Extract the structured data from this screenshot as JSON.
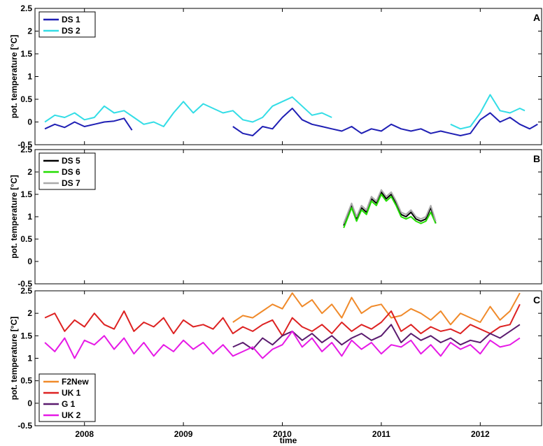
{
  "figure": {
    "xlabel": "time",
    "x_tick_labels": [
      "2008",
      "2009",
      "2010",
      "2011",
      "2012"
    ]
  },
  "chart_data": [
    {
      "type": "line",
      "panel_label": "A",
      "ylabel": "pot. temperature [°C]",
      "xlim": [
        2007.5,
        2012.62
      ],
      "ylim": [
        -0.5,
        2.5
      ],
      "yticks": [
        -0.5,
        0,
        0.5,
        1,
        1.5,
        2,
        2.5
      ],
      "y_tick_labels": [
        "-0.5",
        "0",
        "0.5",
        "1",
        "1.5",
        "2",
        "2.5"
      ],
      "xticks": [
        2008,
        2009,
        2010,
        2011,
        2012
      ],
      "grid": false,
      "legend_position": "top-left",
      "series": [
        {
          "name": "DS 1",
          "color": "#1f1fb4",
          "segments": [
            {
              "x": [
                2007.6,
                2007.7,
                2007.8,
                2007.9,
                2008.0,
                2008.1,
                2008.2,
                2008.3,
                2008.4,
                2008.48
              ],
              "y": [
                -0.15,
                -0.05,
                -0.12,
                0.0,
                -0.1,
                -0.05,
                0.0,
                0.02,
                0.08,
                -0.18
              ]
            },
            {
              "x": [
                2009.5,
                2009.6,
                2009.7,
                2009.8,
                2009.9,
                2010.0,
                2010.1,
                2010.2,
                2010.3,
                2010.4,
                2010.5,
                2010.6,
                2010.7,
                2010.8,
                2010.9,
                2011.0,
                2011.1,
                2011.2,
                2011.3,
                2011.4,
                2011.5,
                2011.6,
                2011.7,
                2011.8,
                2011.9,
                2012.0,
                2012.1,
                2012.2,
                2012.3,
                2012.4,
                2012.5,
                2012.58
              ],
              "y": [
                -0.1,
                -0.25,
                -0.3,
                -0.1,
                -0.15,
                0.1,
                0.3,
                0.05,
                -0.05,
                -0.1,
                -0.15,
                -0.2,
                -0.1,
                -0.25,
                -0.15,
                -0.2,
                -0.05,
                -0.15,
                -0.2,
                -0.15,
                -0.25,
                -0.2,
                -0.25,
                -0.3,
                -0.25,
                0.05,
                0.2,
                0.0,
                0.1,
                -0.05,
                -0.15,
                -0.05
              ]
            }
          ]
        },
        {
          "name": "DS 2",
          "color": "#33dde6",
          "segments": [
            {
              "x": [
                2007.6,
                2007.7,
                2007.8,
                2007.9,
                2008.0,
                2008.1,
                2008.2,
                2008.3,
                2008.4,
                2008.5,
                2008.6,
                2008.7,
                2008.8,
                2008.9,
                2009.0,
                2009.1,
                2009.2,
                2009.3,
                2009.4,
                2009.5,
                2009.6,
                2009.7,
                2009.8,
                2009.9,
                2010.0,
                2010.1,
                2010.2,
                2010.3,
                2010.4,
                2010.5
              ],
              "y": [
                0.0,
                0.15,
                0.1,
                0.2,
                0.05,
                0.1,
                0.35,
                0.2,
                0.25,
                0.1,
                -0.05,
                0.0,
                -0.1,
                0.2,
                0.45,
                0.2,
                0.4,
                0.3,
                0.2,
                0.25,
                0.05,
                0.0,
                0.1,
                0.35,
                0.45,
                0.55,
                0.35,
                0.15,
                0.2,
                0.1
              ]
            },
            {
              "x": [
                2011.7,
                2011.8,
                2011.9,
                2012.0,
                2012.1,
                2012.2,
                2012.3,
                2012.4,
                2012.45
              ],
              "y": [
                -0.05,
                -0.15,
                -0.1,
                0.2,
                0.6,
                0.25,
                0.2,
                0.3,
                0.25
              ]
            }
          ]
        }
      ]
    },
    {
      "type": "line",
      "panel_label": "B",
      "ylabel": "pot. temperature [°C]",
      "xlim": [
        2007.5,
        2012.62
      ],
      "ylim": [
        -0.5,
        2.5
      ],
      "yticks": [
        -0.5,
        0,
        0.5,
        1,
        1.5,
        2,
        2.5
      ],
      "y_tick_labels": [
        "-0.5",
        "0",
        "0.5",
        "1",
        "1.5",
        "2",
        "2.5"
      ],
      "xticks": [
        2008,
        2009,
        2010,
        2011,
        2012
      ],
      "grid": false,
      "legend_position": "top-left",
      "series": [
        {
          "name": "DS 5",
          "color": "#000000",
          "segments": [
            {
              "x": [
                2010.62,
                2010.7,
                2010.75,
                2010.8,
                2010.85,
                2010.9,
                2010.95,
                2011.0,
                2011.05,
                2011.1,
                2011.15,
                2011.2,
                2011.25,
                2011.3,
                2011.35,
                2011.4,
                2011.45,
                2011.5,
                2011.55
              ],
              "y": [
                0.8,
                1.25,
                0.95,
                1.2,
                1.1,
                1.4,
                1.3,
                1.55,
                1.4,
                1.5,
                1.3,
                1.05,
                1.0,
                1.1,
                0.95,
                0.9,
                0.95,
                1.2,
                0.85
              ]
            }
          ]
        },
        {
          "name": "DS 6",
          "color": "#22dd00",
          "segments": [
            {
              "x": [
                2010.62,
                2010.7,
                2010.75,
                2010.8,
                2010.85,
                2010.9,
                2010.95,
                2011.0,
                2011.05,
                2011.1,
                2011.15,
                2011.2,
                2011.25,
                2011.3,
                2011.35,
                2011.4,
                2011.45,
                2011.5,
                2011.55
              ],
              "y": [
                0.75,
                1.2,
                0.9,
                1.15,
                1.05,
                1.35,
                1.25,
                1.5,
                1.35,
                1.45,
                1.25,
                1.0,
                0.95,
                1.0,
                0.9,
                0.85,
                0.9,
                1.1,
                0.85
              ]
            }
          ]
        },
        {
          "name": "DS 7",
          "color": "#aaaaaa",
          "segments": [
            {
              "x": [
                2010.62,
                2010.7,
                2010.75,
                2010.8,
                2010.85,
                2010.9,
                2010.95,
                2011.0,
                2011.05,
                2011.1,
                2011.15,
                2011.2,
                2011.25,
                2011.3,
                2011.35,
                2011.4,
                2011.45,
                2011.5,
                2011.55
              ],
              "y": [
                0.85,
                1.3,
                1.0,
                1.25,
                1.15,
                1.45,
                1.35,
                1.6,
                1.45,
                1.55,
                1.35,
                1.1,
                1.05,
                1.15,
                1.0,
                0.95,
                1.0,
                1.25,
                0.9
              ]
            }
          ]
        }
      ]
    },
    {
      "type": "line",
      "panel_label": "C",
      "ylabel": "pot. temperature [°C]",
      "xlim": [
        2007.5,
        2012.62
      ],
      "ylim": [
        -0.5,
        2.5
      ],
      "yticks": [
        -0.5,
        0,
        0.5,
        1,
        1.5,
        2,
        2.5
      ],
      "y_tick_labels": [
        "-0.5",
        "0",
        "0.5",
        "1",
        "1.5",
        "2",
        "2.5"
      ],
      "xticks": [
        2008,
        2009,
        2010,
        2011,
        2012
      ],
      "grid": false,
      "legend_position": "bottom-left",
      "series": [
        {
          "name": "F2New",
          "color": "#f08a2a",
          "segments": [
            {
              "x": [
                2009.5,
                2009.6,
                2009.7,
                2009.8,
                2009.9,
                2010.0,
                2010.1,
                2010.2,
                2010.3,
                2010.4,
                2010.5,
                2010.6,
                2010.7,
                2010.8,
                2010.9,
                2011.0,
                2011.1,
                2011.2,
                2011.3,
                2011.4,
                2011.5,
                2011.6,
                2011.7,
                2011.8,
                2011.9,
                2012.0,
                2012.1,
                2012.2,
                2012.3,
                2012.4
              ],
              "y": [
                1.8,
                1.95,
                1.9,
                2.05,
                2.2,
                2.1,
                2.45,
                2.15,
                2.3,
                2.0,
                2.2,
                1.9,
                2.35,
                2.0,
                2.15,
                2.2,
                1.9,
                1.95,
                2.1,
                2.0,
                1.85,
                2.05,
                1.75,
                2.0,
                1.9,
                1.8,
                2.15,
                1.85,
                2.05,
                2.45
              ]
            }
          ]
        },
        {
          "name": "UK 1",
          "color": "#dd2222",
          "segments": [
            {
              "x": [
                2007.6,
                2007.7,
                2007.8,
                2007.9,
                2008.0,
                2008.1,
                2008.2,
                2008.3,
                2008.4,
                2008.5,
                2008.6,
                2008.7,
                2008.8,
                2008.9,
                2009.0,
                2009.1,
                2009.2,
                2009.3,
                2009.4,
                2009.5,
                2009.6,
                2009.7,
                2009.8,
                2009.9,
                2010.0,
                2010.1,
                2010.2,
                2010.3,
                2010.4,
                2010.5,
                2010.6,
                2010.7,
                2010.8,
                2010.9,
                2011.0,
                2011.1,
                2011.2,
                2011.3,
                2011.4,
                2011.5,
                2011.6,
                2011.7,
                2011.8,
                2011.9,
                2012.0,
                2012.1,
                2012.2,
                2012.3,
                2012.4
              ],
              "y": [
                1.9,
                2.0,
                1.6,
                1.85,
                1.7,
                2.0,
                1.75,
                1.65,
                2.05,
                1.6,
                1.8,
                1.7,
                1.9,
                1.55,
                1.85,
                1.7,
                1.75,
                1.65,
                1.9,
                1.55,
                1.7,
                1.6,
                1.75,
                1.85,
                1.5,
                1.9,
                1.7,
                1.6,
                1.75,
                1.55,
                1.8,
                1.6,
                1.75,
                1.65,
                1.8,
                2.05,
                1.6,
                1.75,
                1.55,
                1.7,
                1.6,
                1.65,
                1.55,
                1.75,
                1.65,
                1.55,
                1.7,
                1.75,
                2.2
              ]
            }
          ]
        },
        {
          "name": "G 1",
          "color": "#5a1a6e",
          "segments": [
            {
              "x": [
                2009.5,
                2009.6,
                2009.7,
                2009.8,
                2009.9,
                2010.0,
                2010.1,
                2010.2,
                2010.3,
                2010.4,
                2010.5,
                2010.6,
                2010.7,
                2010.8,
                2010.9,
                2011.0,
                2011.1,
                2011.2,
                2011.3,
                2011.4,
                2011.5,
                2011.6,
                2011.7,
                2011.8,
                2011.9,
                2012.0,
                2012.1,
                2012.2,
                2012.3,
                2012.4
              ],
              "y": [
                1.25,
                1.35,
                1.2,
                1.45,
                1.3,
                1.5,
                1.6,
                1.4,
                1.55,
                1.35,
                1.5,
                1.3,
                1.45,
                1.55,
                1.4,
                1.5,
                1.75,
                1.35,
                1.55,
                1.4,
                1.5,
                1.35,
                1.45,
                1.3,
                1.4,
                1.35,
                1.55,
                1.45,
                1.6,
                1.75
              ]
            }
          ]
        },
        {
          "name": "UK 2",
          "color": "#e619e6",
          "segments": [
            {
              "x": [
                2007.6,
                2007.7,
                2007.8,
                2007.9,
                2008.0,
                2008.1,
                2008.2,
                2008.3,
                2008.4,
                2008.5,
                2008.6,
                2008.7,
                2008.8,
                2008.9,
                2009.0,
                2009.1,
                2009.2,
                2009.3,
                2009.4,
                2009.5,
                2009.6,
                2009.7,
                2009.8,
                2009.9,
                2010.0,
                2010.1,
                2010.2,
                2010.3,
                2010.4,
                2010.5,
                2010.6,
                2010.7,
                2010.8,
                2010.9,
                2011.0,
                2011.1,
                2011.2,
                2011.3,
                2011.4,
                2011.5,
                2011.6,
                2011.7,
                2011.8,
                2011.9,
                2012.0,
                2012.1,
                2012.2,
                2012.3,
                2012.4
              ],
              "y": [
                1.35,
                1.15,
                1.45,
                1.0,
                1.4,
                1.3,
                1.5,
                1.2,
                1.45,
                1.1,
                1.35,
                1.05,
                1.3,
                1.15,
                1.4,
                1.2,
                1.35,
                1.1,
                1.3,
                1.05,
                1.15,
                1.25,
                1.0,
                1.2,
                1.3,
                1.6,
                1.25,
                1.45,
                1.15,
                1.35,
                1.05,
                1.4,
                1.2,
                1.35,
                1.1,
                1.3,
                1.25,
                1.4,
                1.1,
                1.3,
                1.05,
                1.35,
                1.2,
                1.3,
                1.1,
                1.4,
                1.25,
                1.3,
                1.45
              ]
            }
          ]
        }
      ]
    }
  ]
}
